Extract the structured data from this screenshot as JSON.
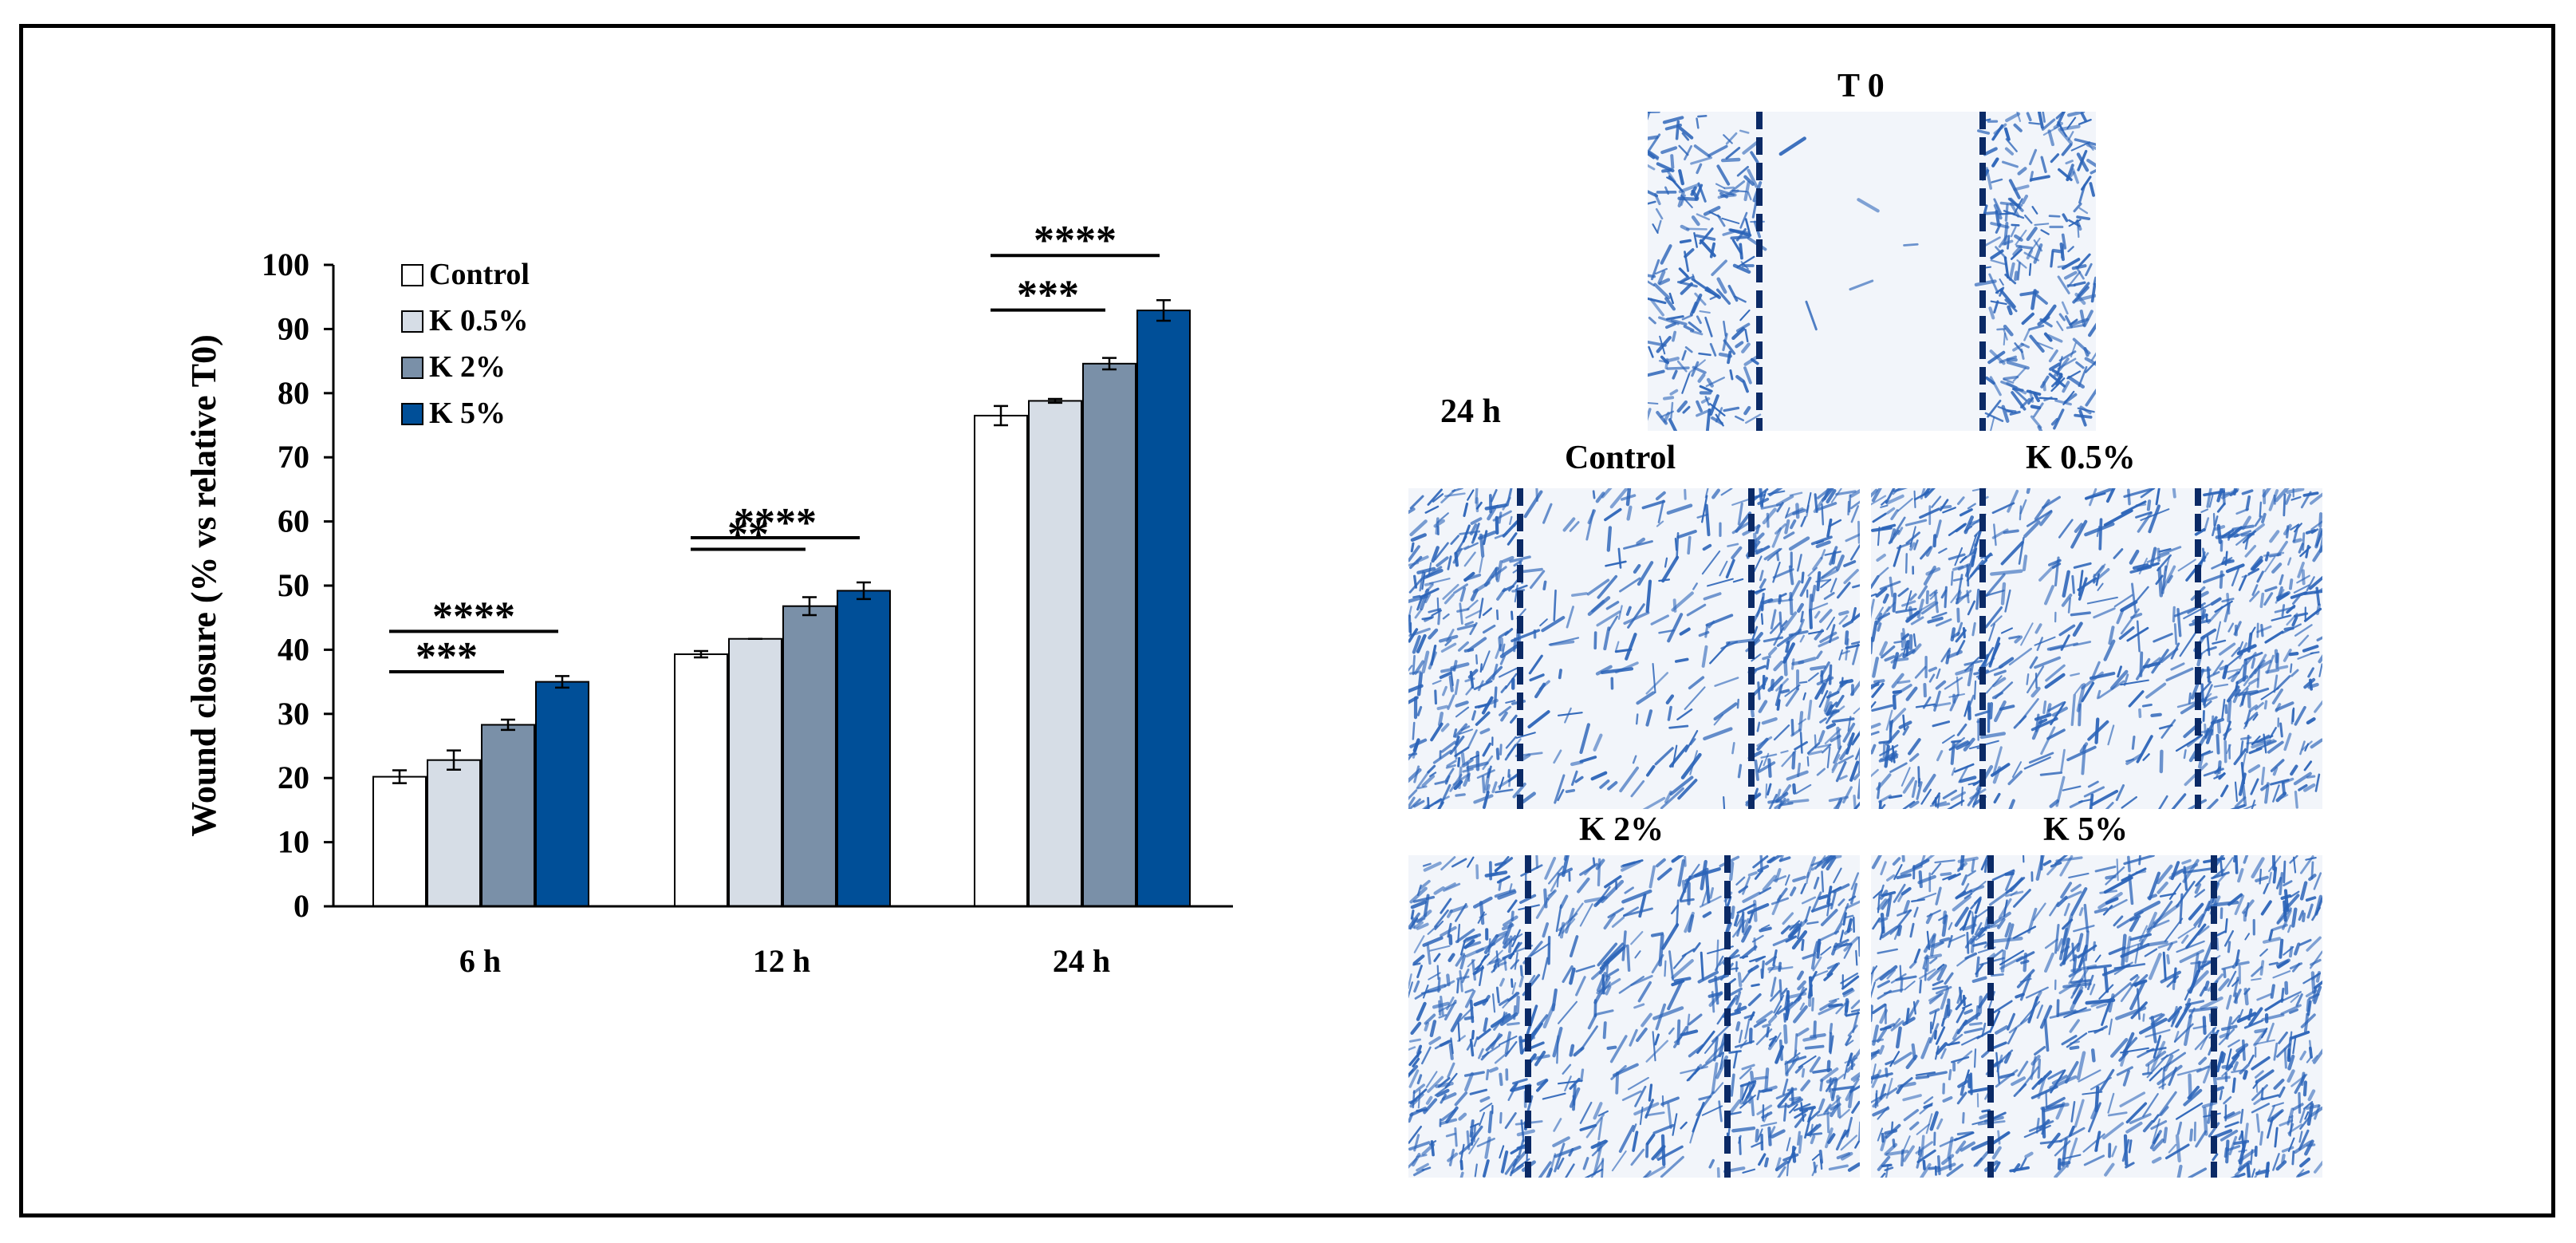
{
  "chart_data": {
    "type": "bar",
    "title": "",
    "xlabel": "",
    "ylabel": "Wound closure (% vs relative T0)",
    "ylim": [
      0,
      100
    ],
    "yticks": [
      0,
      10,
      20,
      30,
      40,
      50,
      60,
      70,
      80,
      90,
      100
    ],
    "grid": false,
    "legend_position": "top-left",
    "categories": [
      "6 h",
      "12 h",
      "24 h"
    ],
    "series": [
      {
        "name": "Control",
        "color": "#ffffff",
        "values": [
          20.2,
          39.3,
          76.5
        ],
        "errors": [
          1.0,
          0.5,
          1.5
        ]
      },
      {
        "name": "K 0.5%",
        "color": "#d6dde6",
        "values": [
          22.8,
          41.7,
          78.8
        ],
        "errors": [
          1.5,
          0.0,
          0.3
        ]
      },
      {
        "name": "K 2%",
        "color": "#7a90a8",
        "values": [
          28.3,
          46.8,
          84.6
        ],
        "errors": [
          0.8,
          1.4,
          0.9
        ]
      },
      {
        "name": "K 5%",
        "color": "#004f98",
        "values": [
          35.0,
          49.2,
          92.9
        ],
        "errors": [
          0.9,
          1.3,
          1.6
        ]
      }
    ],
    "significance": [
      {
        "category": "6 h",
        "from": "Control",
        "to": "K 5%",
        "label": "****"
      },
      {
        "category": "6 h",
        "from": "Control",
        "to": "K 2%",
        "label": "***"
      },
      {
        "category": "12 h",
        "from": "Control",
        "to": "K 5%",
        "label": "****"
      },
      {
        "category": "12 h",
        "from": "Control",
        "to": "K 2%",
        "label": "**"
      },
      {
        "category": "24 h",
        "from": "Control",
        "to": "K 5%",
        "label": "****"
      },
      {
        "category": "24 h",
        "from": "Control",
        "to": "K 2%",
        "label": "***"
      }
    ]
  },
  "micrographs": {
    "group_label": "24 h",
    "panels": [
      {
        "id": "t0",
        "title": "T 0"
      },
      {
        "id": "control",
        "title": "Control"
      },
      {
        "id": "k05",
        "title": "K 0.5%"
      },
      {
        "id": "k2",
        "title": "K 2%"
      },
      {
        "id": "k5",
        "title": "K 5%"
      }
    ]
  },
  "colors": {
    "cell_stain": "#2a63b8",
    "dash_line": "#0b2a66",
    "axis": "#000000"
  }
}
